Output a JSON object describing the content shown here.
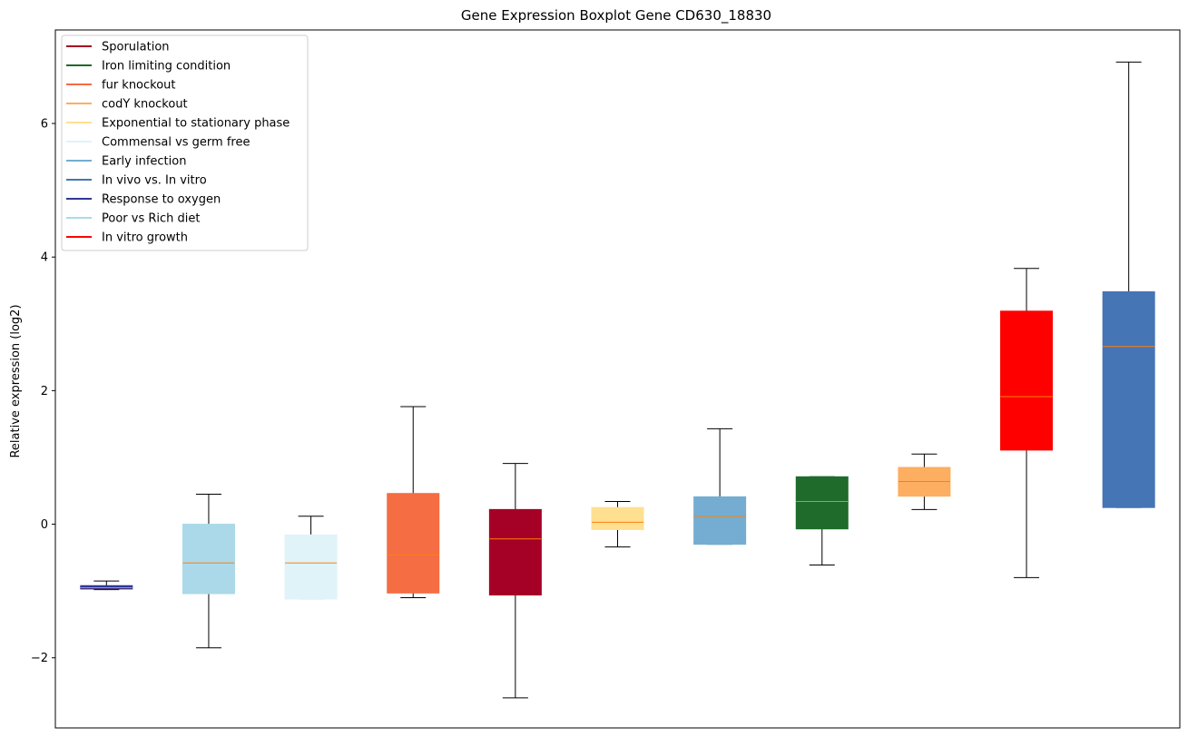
{
  "chart_data": {
    "type": "boxplot",
    "title": "Gene Expression Boxplot Gene CD630_18830",
    "xlabel": "",
    "ylabel": "Relative expression (log2)",
    "ylim": [
      -3.05,
      7.4
    ],
    "yticks": [
      -2,
      0,
      2,
      4,
      6
    ],
    "ytick_labels": [
      "−2",
      "0",
      "2",
      "4",
      "6"
    ],
    "median_color": "#ff7f0e",
    "legend_position": "top-left",
    "legend": [
      {
        "label": "Sporulation",
        "color": "#a50026"
      },
      {
        "label": "Iron limiting condition",
        "color": "#1f6b2b"
      },
      {
        "label": "fur knockout",
        "color": "#f46d43"
      },
      {
        "label": "codY knockout",
        "color": "#fdae61"
      },
      {
        "label": "Exponential to stationary phase",
        "color": "#fee090"
      },
      {
        "label": "Commensal vs germ free",
        "color": "#e0f3f8"
      },
      {
        "label": "Early infection",
        "color": "#74add1"
      },
      {
        "label": "In vivo vs. In vitro",
        "color": "#4575b4"
      },
      {
        "label": "Response to oxygen",
        "color": "#313695"
      },
      {
        "label": "Poor vs Rich diet",
        "color": "#abd9e9"
      },
      {
        "label": "In vitro growth",
        "color": "#ff0000"
      }
    ],
    "boxes": [
      {
        "condition": "Response to oxygen",
        "color": "#313695",
        "whisker_low": -0.98,
        "q1": -0.97,
        "median": -0.95,
        "q3": -0.92,
        "whisker_high": -0.85
      },
      {
        "condition": "Poor vs Rich diet",
        "color": "#abd9e9",
        "whisker_low": -1.85,
        "q1": -1.04,
        "median": -0.58,
        "q3": 0.0,
        "whisker_high": 0.45
      },
      {
        "condition": "Commensal vs germ free",
        "color": "#e0f3f8",
        "whisker_low": -1.12,
        "q1": -1.12,
        "median": -0.58,
        "q3": -0.16,
        "whisker_high": 0.12
      },
      {
        "condition": "fur knockout",
        "color": "#f46d43",
        "whisker_low": -1.1,
        "q1": -1.03,
        "median": -0.46,
        "q3": 0.46,
        "whisker_high": 1.76
      },
      {
        "condition": "Sporulation",
        "color": "#a50026",
        "whisker_low": -2.6,
        "q1": -1.06,
        "median": -0.22,
        "q3": 0.22,
        "whisker_high": 0.91
      },
      {
        "condition": "Exponential to stationary phase",
        "color": "#fee090",
        "whisker_low": -0.34,
        "q1": -0.08,
        "median": 0.03,
        "q3": 0.25,
        "whisker_high": 0.34
      },
      {
        "condition": "Early infection",
        "color": "#74add1",
        "whisker_low": -0.3,
        "q1": -0.3,
        "median": 0.12,
        "q3": 0.41,
        "whisker_high": 1.43
      },
      {
        "condition": "Iron limiting condition",
        "color": "#1f6b2b",
        "whisker_low": -0.61,
        "q1": -0.07,
        "median": 0.34,
        "q3": 0.71,
        "whisker_high": 0.71
      },
      {
        "condition": "codY knockout",
        "color": "#fdae61",
        "whisker_low": 0.22,
        "q1": 0.42,
        "median": 0.64,
        "q3": 0.85,
        "whisker_high": 1.05
      },
      {
        "condition": "In vitro growth",
        "color": "#ff0000",
        "whisker_low": -0.8,
        "q1": 1.11,
        "median": 1.91,
        "q3": 3.19,
        "whisker_high": 3.83
      },
      {
        "condition": "In vivo vs. In vitro",
        "color": "#4575b4",
        "whisker_low": 0.25,
        "q1": 0.25,
        "median": 2.66,
        "q3": 3.48,
        "whisker_high": 6.92
      }
    ]
  }
}
